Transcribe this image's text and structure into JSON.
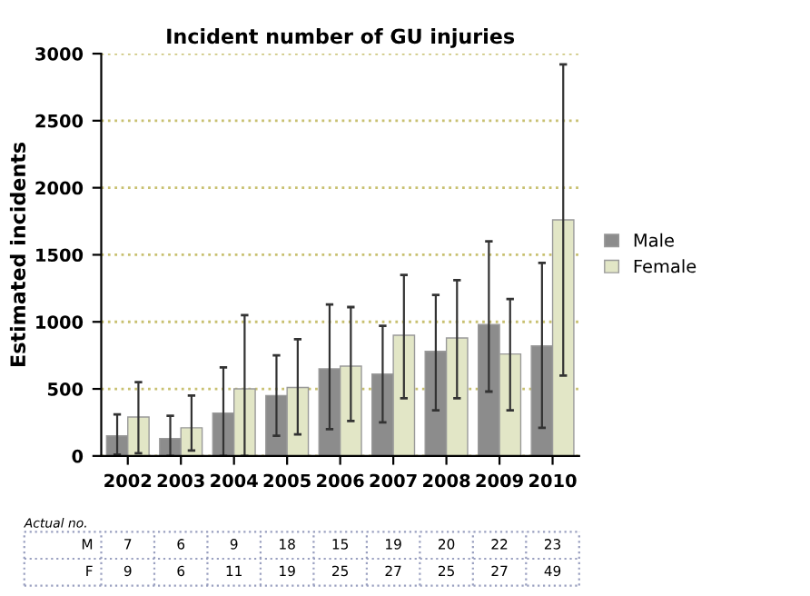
{
  "chart_data": {
    "type": "bar",
    "title": "Incident number of GU injuries",
    "ylabel": "Estimated incidents",
    "categories": [
      "2002",
      "2003",
      "2004",
      "2005",
      "2006",
      "2007",
      "2008",
      "2009",
      "2010"
    ],
    "series": [
      {
        "name": "Male",
        "color": "#8c8c8c",
        "values": [
          150,
          130,
          320,
          450,
          650,
          610,
          780,
          980,
          820
        ],
        "errors": [
          [
            10,
            310
          ],
          [
            0,
            300
          ],
          [
            0,
            660
          ],
          [
            150,
            750
          ],
          [
            200,
            1130
          ],
          [
            250,
            970
          ],
          [
            340,
            1200
          ],
          [
            480,
            1600
          ],
          [
            210,
            1440
          ]
        ]
      },
      {
        "name": "Female",
        "color": "#e2e6c6",
        "values": [
          290,
          210,
          500,
          510,
          670,
          900,
          880,
          760,
          1760
        ],
        "errors": [
          [
            20,
            550
          ],
          [
            40,
            450
          ],
          [
            0,
            1050
          ],
          [
            160,
            870
          ],
          [
            260,
            1110
          ],
          [
            430,
            1350
          ],
          [
            430,
            1310
          ],
          [
            340,
            1170
          ],
          [
            600,
            2920
          ]
        ]
      }
    ],
    "ylim": [
      0,
      3000
    ],
    "yticks": [
      0,
      500,
      1000,
      1500,
      2000,
      2500,
      3000
    ],
    "grid": "y",
    "legend": "right",
    "annotations": [
      "Actual no.",
      "M",
      "7",
      "6",
      "9",
      "18",
      "15",
      "19",
      "20",
      "22",
      "23",
      "F",
      "9",
      "6",
      "11",
      "19",
      "25",
      "27",
      "25",
      "27",
      "49"
    ]
  }
}
